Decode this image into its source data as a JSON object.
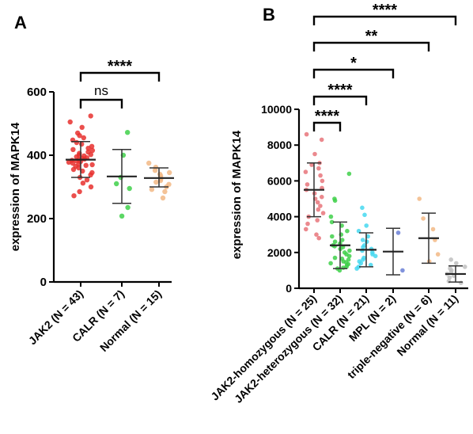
{
  "chart_data": [
    {
      "panel": "A",
      "type": "scatter",
      "ylabel": "expression of MAPK14",
      "ylim": [
        0,
        600
      ],
      "yticks": [
        "0",
        "200",
        "400",
        "600"
      ],
      "categories": [
        "JAK2 (N = 43)",
        "CALR (N = 7)",
        "Normal (N = 15)"
      ],
      "colors": [
        "#e8302e",
        "#3fd04a",
        "#f2b985"
      ],
      "means": [
        386,
        333,
        328
      ],
      "sd_upper": [
        443,
        418,
        360
      ],
      "sd_lower": [
        330,
        248,
        300
      ],
      "points": [
        [
          524,
          505,
          488,
          470,
          462,
          455,
          448,
          440,
          435,
          428,
          422,
          418,
          415,
          410,
          406,
          402,
          400,
          398,
          395,
          392,
          390,
          388,
          386,
          384,
          382,
          380,
          378,
          375,
          372,
          370,
          368,
          365,
          360,
          355,
          350,
          345,
          338,
          330,
          322,
          312,
          300,
          285,
          272
        ],
        [
          472,
          400,
          330,
          310,
          295,
          235,
          208
        ],
        [
          375,
          362,
          352,
          345,
          340,
          335,
          330,
          325,
          320,
          315,
          308,
          300,
          292,
          285,
          265
        ]
      ],
      "comparisons": [
        {
          "label": "ns",
          "from": 0,
          "to": 1
        },
        {
          "label": "****",
          "from": 0,
          "to": 2
        }
      ]
    },
    {
      "panel": "B",
      "type": "scatter",
      "ylabel": "expression of MAPK14",
      "ylim": [
        0,
        10000
      ],
      "yticks": [
        "0",
        "2000",
        "4000",
        "6000",
        "8000",
        "10000"
      ],
      "categories": [
        "JAK2-homozygous (N = 25)",
        "JAK2-heterozygous (N = 32)",
        "CALR (N = 21)",
        "MPL (N = 2)",
        "triple-negative (N = 6)",
        "Normal (N = 11)"
      ],
      "colors": [
        "#e8747a",
        "#3fd04a",
        "#45d8f0",
        "#6a7fd6",
        "#f2b985",
        "#bfbfbf"
      ],
      "means": [
        5500,
        2400,
        2150,
        2050,
        2800,
        800
      ],
      "sd_upper": [
        7000,
        3700,
        3100,
        3350,
        4200,
        1250
      ],
      "sd_lower": [
        4000,
        1100,
        1200,
        750,
        1400,
        350
      ],
      "points": [
        [
          8600,
          8300,
          7500,
          7000,
          6900,
          6700,
          6500,
          6300,
          6000,
          5800,
          5600,
          5500,
          5300,
          5100,
          5000,
          4800,
          4600,
          4400,
          4200,
          4000,
          3800,
          3600,
          3300,
          3000,
          2800
        ],
        [
          6400,
          5000,
          4900,
          4000,
          3700,
          3500,
          3200,
          3000,
          2900,
          2700,
          2600,
          2500,
          2400,
          2350,
          2300,
          2200,
          2100,
          2000,
          1900,
          1800,
          1700,
          1650,
          1600,
          1500,
          1450,
          1400,
          1350,
          1300,
          1200,
          1150,
          1100,
          1000
        ],
        [
          4500,
          4100,
          3500,
          3200,
          2900,
          2700,
          2600,
          2400,
          2300,
          2200,
          2100,
          2000,
          1900,
          1800,
          1700,
          1600,
          1500,
          1400,
          1300,
          1200,
          1100
        ],
        [
          3100,
          1000
        ],
        [
          5000,
          3900,
          3300,
          2700,
          1900,
          1500
        ],
        [
          1600,
          1400,
          1200,
          1100,
          1000,
          900,
          800,
          700,
          600,
          400,
          300
        ]
      ],
      "comparisons": [
        {
          "label": "****",
          "from": 0,
          "to": 1
        },
        {
          "label": "****",
          "from": 0,
          "to": 2
        },
        {
          "label": "*",
          "from": 0,
          "to": 3
        },
        {
          "label": "**",
          "from": 0,
          "to": 4
        },
        {
          "label": "****",
          "from": 0,
          "to": 5
        }
      ]
    }
  ]
}
